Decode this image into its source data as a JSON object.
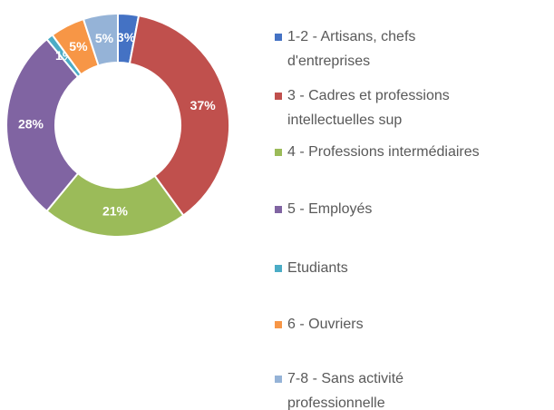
{
  "chart_data": {
    "type": "donut",
    "categories": [
      "1-2 - Artisans, chefs d'entreprises",
      "3 - Cadres et professions intellectuelles sup",
      "4 - Professions intermédiaires",
      "5 - Employés",
      "Etudiants",
      "6 - Ouvriers",
      "7-8 - Sans activité professionnelle"
    ],
    "values": [
      3,
      37,
      21,
      28,
      1,
      5,
      5
    ],
    "value_labels": [
      "3%",
      "37%",
      "21%",
      "28%",
      "1%",
      "5%",
      "5%"
    ],
    "colors": [
      "#4472c4",
      "#c0504d",
      "#9bbb59",
      "#8064a2",
      "#4bacc6",
      "#f79646",
      "#95b3d7"
    ],
    "legend": "right"
  }
}
